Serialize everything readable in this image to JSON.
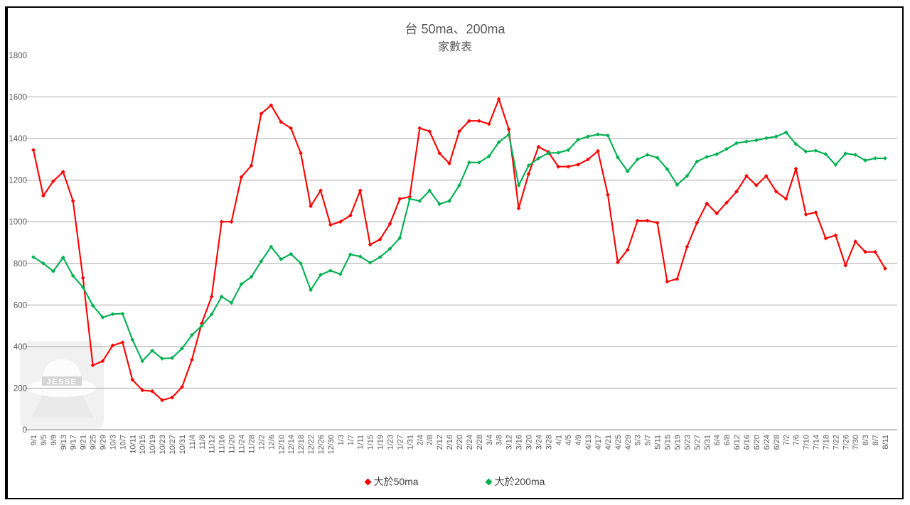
{
  "title": {
    "line1": "台 50ma、200ma",
    "line2": "家數表"
  },
  "legend": [
    {
      "label": "大於50ma",
      "color": "#ff0000",
      "marker": "diamond"
    },
    {
      "label": "大於200ma",
      "color": "#00b050",
      "marker": "diamond"
    }
  ],
  "watermark": {
    "text": "JESSE",
    "icon": "fedora-hat-logo"
  },
  "colors": {
    "series_50ma": "#ff0000",
    "series_200ma": "#00b050",
    "gridline": "#a6a6a6",
    "axis_text": "#595959",
    "title_text": "#595959",
    "border": "#000000"
  },
  "chart_data": {
    "type": "line",
    "title": "台 50ma、200ma 家數表",
    "xlabel": "",
    "ylabel": "",
    "ylim": [
      0,
      1800
    ],
    "ytick_step": 200,
    "grid": true,
    "legend_position": "bottom",
    "marker": "diamond",
    "categories": [
      "9/1",
      "9/5",
      "9/9",
      "9/13",
      "9/17",
      "9/21",
      "9/25",
      "9/29",
      "10/3",
      "10/7",
      "10/11",
      "10/15",
      "10/19",
      "10/23",
      "10/27",
      "10/31",
      "11/4",
      "11/8",
      "11/12",
      "11/16",
      "11/20",
      "11/24",
      "11/28",
      "12/2",
      "12/6",
      "12/10",
      "12/14",
      "12/18",
      "12/22",
      "12/26",
      "12/30",
      "1/3",
      "1/7",
      "1/11",
      "1/15",
      "1/19",
      "1/23",
      "1/27",
      "1/31",
      "2/4",
      "2/8",
      "2/12",
      "2/16",
      "2/20",
      "2/24",
      "2/28",
      "3/4",
      "3/8",
      "3/12",
      "3/16",
      "3/20",
      "3/24",
      "3/28",
      "4/1",
      "4/5",
      "4/9",
      "4/13",
      "4/17",
      "4/21",
      "4/25",
      "4/29",
      "5/3",
      "5/7",
      "5/11",
      "5/15",
      "5/19",
      "5/23",
      "5/27",
      "5/31",
      "6/4",
      "6/8",
      "6/12",
      "6/16",
      "6/20",
      "6/24",
      "6/28",
      "7/2",
      "7/6",
      "7/10",
      "7/14",
      "7/18",
      "7/22",
      "7/26",
      "7/30",
      "8/3",
      "8/7",
      "8/11"
    ],
    "series": [
      {
        "name": "大於50ma",
        "color": "#ff0000",
        "values": [
          1345,
          1125,
          1195,
          1240,
          1100,
          730,
          310,
          330,
          405,
          420,
          240,
          190,
          185,
          142,
          155,
          205,
          336,
          512,
          640,
          1000,
          1000,
          1215,
          1270,
          1520,
          1560,
          1480,
          1450,
          1330,
          1075,
          1150,
          985,
          1000,
          1030,
          1150,
          890,
          915,
          990,
          1110,
          1120,
          1450,
          1435,
          1330,
          1280,
          1435,
          1485,
          1485,
          1470,
          1590,
          1445,
          1065,
          1230,
          1360,
          1335,
          1265,
          1265,
          1275,
          1300,
          1340,
          1130,
          805,
          865,
          1005,
          1005,
          995,
          712,
          725,
          880,
          995,
          1088,
          1040,
          1092,
          1145,
          1220,
          1175,
          1220,
          1145,
          1110,
          1255,
          1035,
          1045,
          920,
          935,
          790,
          905,
          855,
          855,
          775
        ]
      },
      {
        "name": "大於200ma",
        "color": "#00b050",
        "values": [
          830,
          800,
          762,
          828,
          740,
          685,
          597,
          540,
          556,
          558,
          433,
          330,
          380,
          342,
          345,
          390,
          455,
          500,
          555,
          640,
          610,
          700,
          735,
          810,
          880,
          820,
          845,
          800,
          672,
          745,
          765,
          748,
          843,
          833,
          803,
          830,
          870,
          922,
          1110,
          1100,
          1150,
          1085,
          1100,
          1175,
          1285,
          1285,
          1315,
          1383,
          1420,
          1175,
          1270,
          1305,
          1330,
          1332,
          1345,
          1395,
          1410,
          1420,
          1415,
          1310,
          1243,
          1300,
          1322,
          1308,
          1253,
          1178,
          1220,
          1290,
          1312,
          1325,
          1350,
          1378,
          1386,
          1392,
          1402,
          1410,
          1430,
          1373,
          1338,
          1342,
          1325,
          1274,
          1328,
          1322,
          1295,
          1305,
          1305
        ]
      }
    ]
  }
}
